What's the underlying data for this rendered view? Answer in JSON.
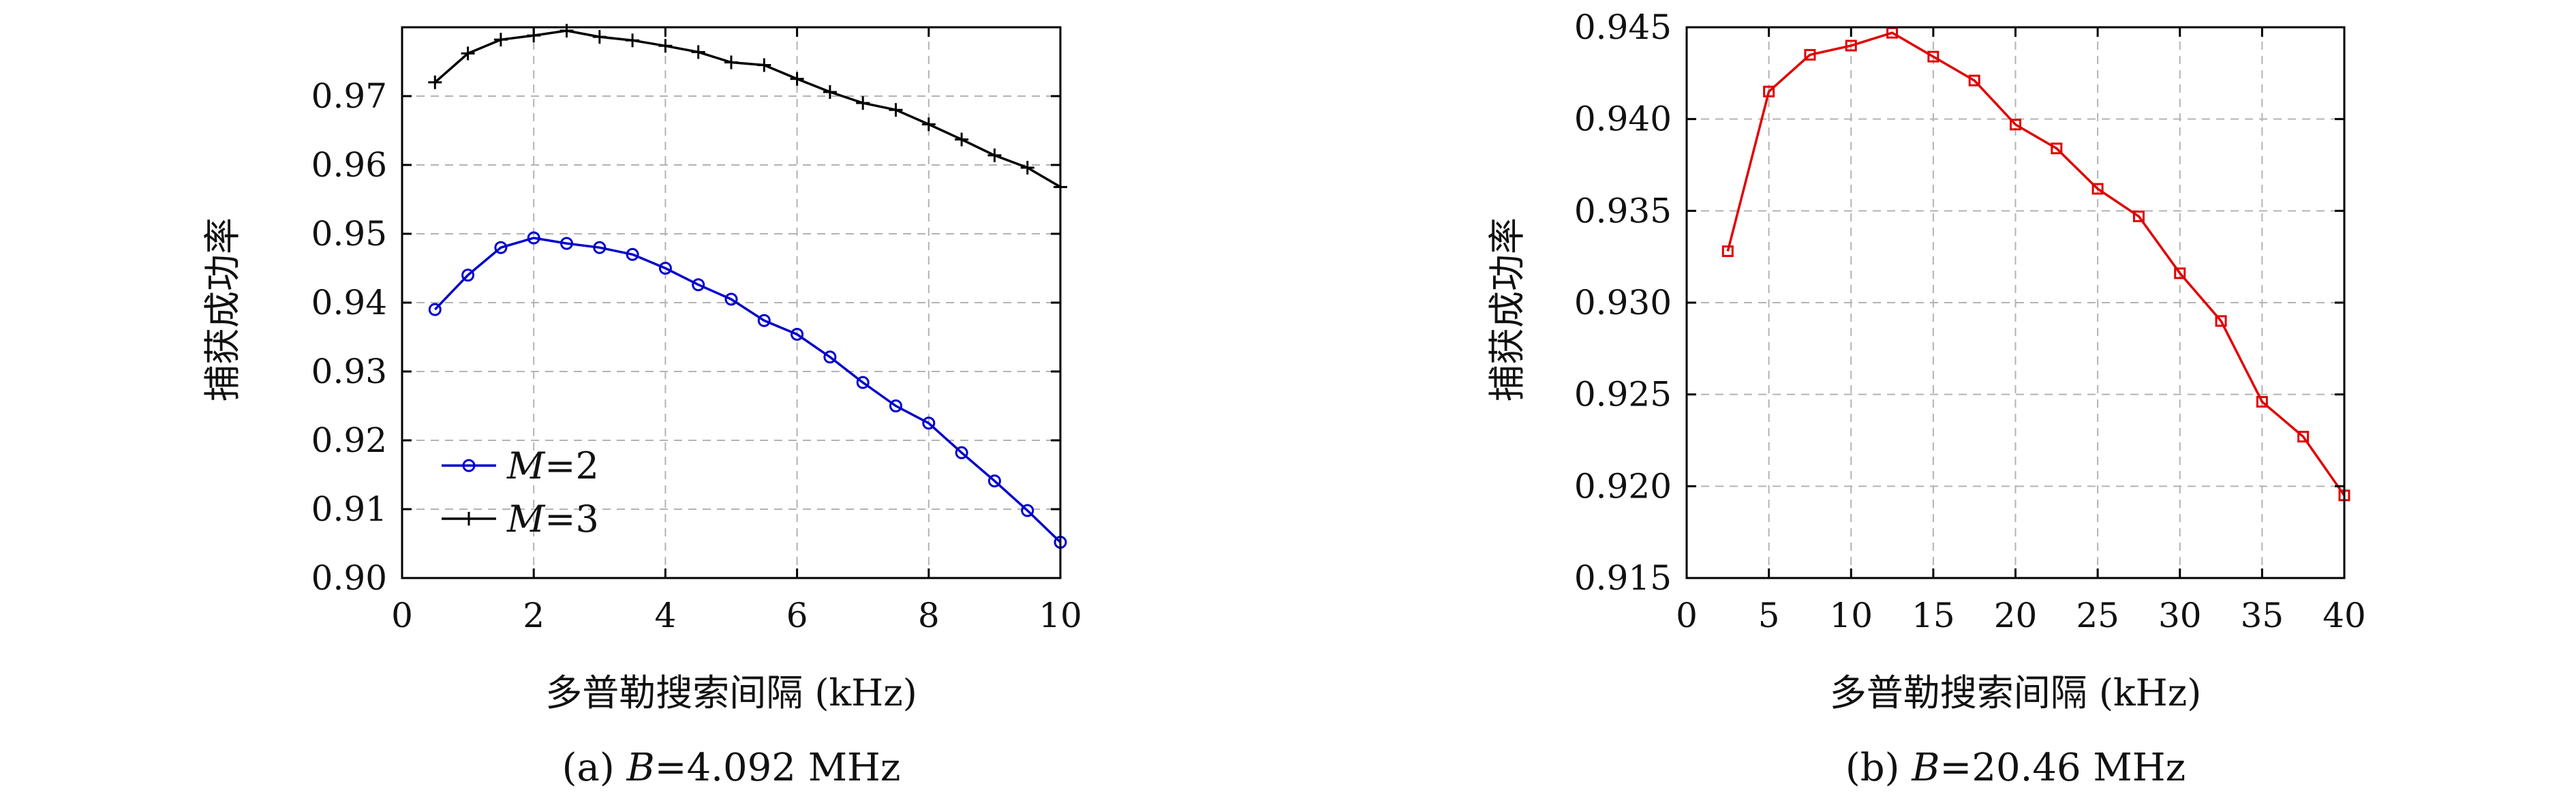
{
  "chart_data": [
    {
      "type": "line",
      "caption_prefix": "(a) ",
      "caption_var": "B",
      "caption_rest": "=4.092 MHz",
      "xlabel": "多普勒搜索间隔 (kHz)",
      "ylabel": "捕获成功率",
      "xlim": [
        0,
        10
      ],
      "ylim": [
        0.9,
        0.98
      ],
      "x_ticks": [
        0,
        2,
        4,
        6,
        8,
        10
      ],
      "y_ticks": [
        0.9,
        0.91,
        0.92,
        0.93,
        0.94,
        0.95,
        0.96,
        0.97
      ],
      "y_tick_decimals": 2,
      "grid": true,
      "legend_position": "bottom-left",
      "series": [
        {
          "name": "M=2",
          "legend_var": "M",
          "legend_rest": "=2",
          "color": "#0000cc",
          "marker": "circle",
          "x": [
            0.5,
            1.0,
            1.5,
            2.0,
            2.5,
            3.0,
            3.5,
            4.0,
            4.5,
            5.0,
            5.5,
            6.0,
            6.5,
            7.0,
            7.5,
            8.0,
            8.5,
            9.0,
            9.5,
            10.0
          ],
          "y": [
            0.939,
            0.944,
            0.948,
            0.9494,
            0.9486,
            0.948,
            0.947,
            0.945,
            0.9426,
            0.9405,
            0.9374,
            0.9354,
            0.9321,
            0.9284,
            0.925,
            0.9225,
            0.9182,
            0.9141,
            0.9098,
            0.9052
          ]
        },
        {
          "name": "M=3",
          "legend_var": "M",
          "legend_rest": "=3",
          "color": "#000000",
          "marker": "plus",
          "x": [
            0.5,
            1.0,
            1.5,
            2.0,
            2.5,
            3.0,
            3.5,
            4.0,
            4.5,
            5.0,
            5.5,
            6.0,
            6.5,
            7.0,
            7.5,
            8.0,
            8.5,
            9.0,
            9.5,
            10.0
          ],
          "y": [
            0.972,
            0.9762,
            0.9782,
            0.9788,
            0.9795,
            0.9786,
            0.9781,
            0.9773,
            0.9764,
            0.9749,
            0.9745,
            0.9725,
            0.9706,
            0.969,
            0.968,
            0.9659,
            0.9637,
            0.9614,
            0.9596,
            0.9568
          ]
        }
      ]
    },
    {
      "type": "line",
      "caption_prefix": "(b) ",
      "caption_var": "B",
      "caption_rest": "=20.46 MHz",
      "xlabel": "多普勒搜索间隔 (kHz)",
      "ylabel": "捕获成功率",
      "xlim": [
        0,
        40
      ],
      "ylim": [
        0.915,
        0.945
      ],
      "x_ticks": [
        0,
        5,
        10,
        15,
        20,
        25,
        30,
        35,
        40
      ],
      "y_ticks": [
        0.915,
        0.92,
        0.925,
        0.93,
        0.935,
        0.94,
        0.945
      ],
      "y_tick_decimals": 3,
      "grid": true,
      "legend_position": "none",
      "series": [
        {
          "color": "#e00000",
          "marker": "square",
          "x": [
            2.5,
            5.0,
            7.5,
            10.0,
            12.5,
            15.0,
            17.5,
            20.0,
            22.5,
            25.0,
            27.5,
            30.0,
            32.5,
            35.0,
            37.5,
            40.0
          ],
          "y": [
            0.9328,
            0.9415,
            0.9435,
            0.944,
            0.9447,
            0.9434,
            0.9421,
            0.9397,
            0.9384,
            0.9362,
            0.9347,
            0.9316,
            0.929,
            0.9246,
            0.9227,
            0.9195
          ]
        }
      ]
    }
  ]
}
